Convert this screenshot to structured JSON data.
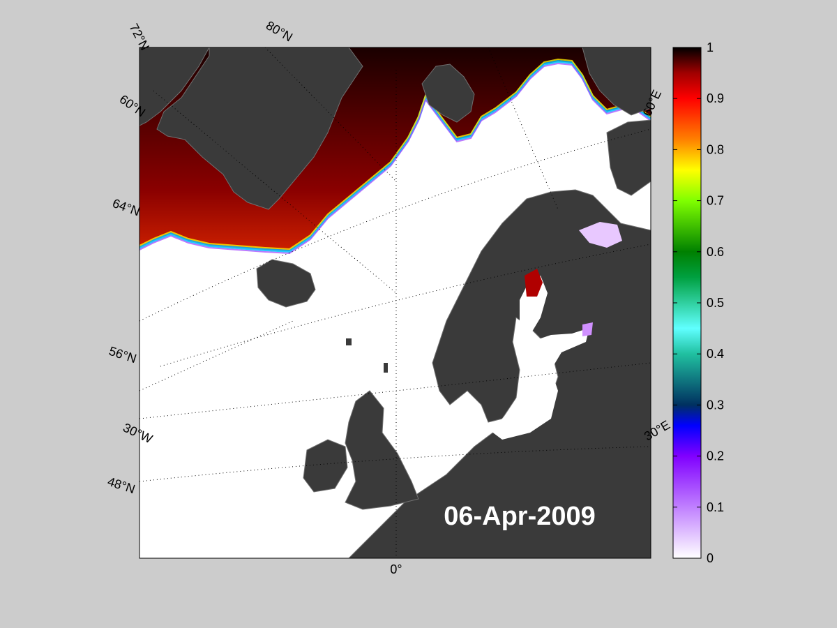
{
  "map": {
    "date": "06-Apr-2009",
    "lat_labels": [
      "72°N",
      "80°N",
      "60°N",
      "64°N",
      "56°N",
      "48°N"
    ],
    "lon_labels": [
      "60°E",
      "30°E",
      "30°W",
      "0°"
    ],
    "colors": {
      "land": "#3a3a3a",
      "land_edge": "#777777",
      "ocean": "#ffffff",
      "background": "#cccccc"
    }
  },
  "colorbar": {
    "ticks": [
      "1",
      "0.9",
      "0.8",
      "0.7",
      "0.6",
      "0.5",
      "0.4",
      "0.3",
      "0.2",
      "0.1",
      "0"
    ],
    "min": 0,
    "max": 1,
    "colors": [
      "#ffffff",
      "#c080ff",
      "#8000ff",
      "#0000ff",
      "#003060",
      "#20c0a0",
      "#60ffff",
      "#00a040",
      "#00c000",
      "#80ff00",
      "#ffff00",
      "#ff8000",
      "#ff0000",
      "#a00000",
      "#000000"
    ]
  }
}
